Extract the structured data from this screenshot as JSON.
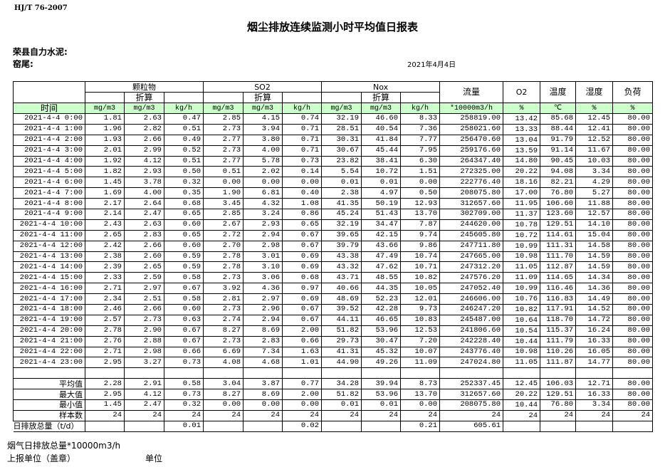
{
  "header": {
    "standard": "HJ/T  76-2007",
    "title": "烟尘排放连续监测小时平均值日报表",
    "company": "荣县自力水泥:",
    "kiln": "窑尾:",
    "date": "2021年4月4日"
  },
  "table": {
    "groups": {
      "pm": "颗粒物",
      "so2": "SO2",
      "nox": "Nox",
      "flow": "流量",
      "o2": "O2",
      "temp": "温度",
      "humidity": "湿度",
      "load": "负荷"
    },
    "converted_label": "折算",
    "units": [
      "时间",
      "mg/m3",
      "mg/m3",
      "kg/h",
      "mg/m3",
      "mg/m3",
      "kg/h",
      "mg/m3",
      "mg/m3",
      "kg/h",
      "*10000m3/h",
      "%",
      "℃",
      "%",
      "%"
    ],
    "rows": [
      [
        "2021-4-4 0:00",
        "1.81",
        "2.63",
        "0.47",
        "2.85",
        "4.15",
        "0.74",
        "32.19",
        "46.60",
        "8.33",
        "258819.00",
        "13.42",
        "85.68",
        "12.45",
        "80.00"
      ],
      [
        "2021-4-4 1:00",
        "1.96",
        "2.82",
        "0.51",
        "2.73",
        "3.94",
        "0.71",
        "28.51",
        "40.54",
        "7.36",
        "258021.60",
        "13.33",
        "88.44",
        "12.41",
        "80.00"
      ],
      [
        "2021-4-4 2:00",
        "1.93",
        "2.66",
        "0.49",
        "2.77",
        "3.80",
        "0.71",
        "30.31",
        "41.84",
        "7.77",
        "256470.60",
        "13.04",
        "91.79",
        "12.52",
        "80.00"
      ],
      [
        "2021-4-4 3:00",
        "2.01",
        "2.99",
        "0.52",
        "2.73",
        "4.00",
        "0.71",
        "30.67",
        "45.44",
        "7.95",
        "259176.60",
        "13.59",
        "91.14",
        "11.67",
        "80.00"
      ],
      [
        "2021-4-4 4:00",
        "1.92",
        "4.12",
        "0.51",
        "2.77",
        "5.78",
        "0.73",
        "23.82",
        "38.41",
        "6.30",
        "264347.40",
        "14.80",
        "90.45",
        "10.03",
        "80.00"
      ],
      [
        "2021-4-4 5:00",
        "1.82",
        "2.93",
        "0.50",
        "0.51",
        "2.02",
        "0.14",
        "5.54",
        "10.72",
        "1.51",
        "272325.00",
        "20.22",
        "94.08",
        "3.34",
        "80.00"
      ],
      [
        "2021-4-4 6:00",
        "1.45",
        "3.78",
        "0.32",
        "0.00",
        "0.00",
        "0.00",
        "0.01",
        "0.01",
        "0.00",
        "222776.40",
        "18.16",
        "82.21",
        "4.29",
        "80.00"
      ],
      [
        "2021-4-4 7:00",
        "1.69",
        "4.00",
        "0.35",
        "1.90",
        "6.81",
        "0.40",
        "2.38",
        "4.97",
        "0.50",
        "208075.80",
        "17.00",
        "76.80",
        "5.27",
        "80.00"
      ],
      [
        "2021-4-4 8:00",
        "2.17",
        "2.64",
        "0.68",
        "3.45",
        "4.32",
        "1.08",
        "41.35",
        "50.19",
        "12.93",
        "312657.60",
        "11.95",
        "106.60",
        "11.88",
        "80.00"
      ],
      [
        "2021-4-4 9:00",
        "2.14",
        "2.47",
        "0.65",
        "2.85",
        "3.24",
        "0.86",
        "45.24",
        "51.43",
        "13.70",
        "302709.00",
        "11.37",
        "123.60",
        "12.57",
        "80.00"
      ],
      [
        "2021-4-4 10:00",
        "2.43",
        "2.63",
        "0.60",
        "2.67",
        "2.93",
        "0.65",
        "32.19",
        "34.47",
        "7.87",
        "244620.00",
        "10.78",
        "129.51",
        "14.10",
        "80.00"
      ],
      [
        "2021-4-4 11:00",
        "2.65",
        "2.83",
        "0.65",
        "2.72",
        "2.94",
        "0.67",
        "39.65",
        "42.15",
        "9.74",
        "245605.80",
        "10.72",
        "114.61",
        "15.04",
        "80.00"
      ],
      [
        "2021-4-4 12:00",
        "2.42",
        "2.66",
        "0.60",
        "2.70",
        "2.98",
        "0.67",
        "39.79",
        "43.66",
        "9.86",
        "247711.80",
        "10.99",
        "111.31",
        "14.58",
        "80.00"
      ],
      [
        "2021-4-4 13:00",
        "2.38",
        "2.60",
        "0.59",
        "2.78",
        "3.01",
        "0.69",
        "43.38",
        "47.49",
        "10.74",
        "247665.00",
        "10.98",
        "111.70",
        "14.59",
        "80.00"
      ],
      [
        "2021-4-4 14:00",
        "2.39",
        "2.65",
        "0.59",
        "2.78",
        "3.10",
        "0.69",
        "43.32",
        "47.62",
        "10.71",
        "247312.20",
        "11.05",
        "112.87",
        "14.59",
        "80.00"
      ],
      [
        "2021-4-4 15:00",
        "2.33",
        "2.59",
        "0.58",
        "2.73",
        "3.06",
        "0.68",
        "43.71",
        "48.55",
        "10.82",
        "247576.20",
        "11.09",
        "114.65",
        "14.34",
        "80.00"
      ],
      [
        "2021-4-4 16:00",
        "2.71",
        "2.97",
        "0.67",
        "3.92",
        "4.36",
        "0.97",
        "40.66",
        "44.35",
        "10.05",
        "247052.40",
        "10.99",
        "116.46",
        "14.36",
        "80.00"
      ],
      [
        "2021-4-4 17:00",
        "2.34",
        "2.51",
        "0.58",
        "2.81",
        "2.97",
        "0.69",
        "48.69",
        "52.23",
        "12.01",
        "246606.00",
        "10.76",
        "116.83",
        "14.49",
        "80.00"
      ],
      [
        "2021-4-4 18:00",
        "2.46",
        "2.66",
        "0.60",
        "2.73",
        "2.96",
        "0.67",
        "39.52",
        "42.28",
        "9.73",
        "246247.20",
        "10.82",
        "117.91",
        "14.52",
        "80.00"
      ],
      [
        "2021-4-4 19:00",
        "2.57",
        "2.73",
        "0.63",
        "2.74",
        "2.94",
        "0.67",
        "44.11",
        "46.65",
        "10.83",
        "245487.00",
        "10.64",
        "118.70",
        "14.72",
        "80.00"
      ],
      [
        "2021-4-4 20:00",
        "2.78",
        "2.90",
        "0.67",
        "8.27",
        "8.69",
        "2.00",
        "51.82",
        "53.96",
        "12.53",
        "241806.60",
        "10.54",
        "115.37",
        "16.24",
        "80.00"
      ],
      [
        "2021-4-4 21:00",
        "2.76",
        "2.88",
        "0.67",
        "2.73",
        "2.83",
        "0.66",
        "29.73",
        "30.47",
        "7.20",
        "242228.40",
        "10.44",
        "111.79",
        "16.33",
        "80.00"
      ],
      [
        "2021-4-4 22:00",
        "2.71",
        "2.98",
        "0.66",
        "6.69",
        "7.34",
        "1.63",
        "41.31",
        "45.32",
        "10.07",
        "243776.40",
        "10.98",
        "110.26",
        "16.05",
        "80.00"
      ],
      [
        "2021-4-4 23:00",
        "2.95",
        "3.27",
        "0.73",
        "4.08",
        "4.68",
        "1.01",
        "44.90",
        "49.26",
        "11.09",
        "247024.80",
        "11.05",
        "111.87",
        "14.77",
        "80.00"
      ]
    ],
    "summary": [
      [
        "平均值",
        "2.28",
        "2.91",
        "0.58",
        "3.04",
        "3.87",
        "0.77",
        "34.28",
        "39.94",
        "8.73",
        "252337.45",
        "12.45",
        "106.03",
        "12.71",
        "80.00"
      ],
      [
        "最大值",
        "2.95",
        "4.12",
        "0.73",
        "8.27",
        "8.69",
        "2.00",
        "51.82",
        "53.96",
        "13.70",
        "312657.60",
        "20.22",
        "129.51",
        "16.33",
        "80.00"
      ],
      [
        "最小值",
        "1.45",
        "2.47",
        "0.32",
        "0.00",
        "0.00",
        "0.00",
        "0.01",
        "0.01",
        "0.00",
        "208075.80",
        "10.44",
        "76.80",
        "3.34",
        "80.00"
      ],
      [
        "样本数",
        "24",
        "24",
        "24",
        "24",
        "24",
        "24",
        "24",
        "24",
        "24",
        "24",
        "24",
        "24",
        "24",
        "24"
      ]
    ],
    "daily_total": [
      "日排放总量（t/d）",
      "",
      "",
      "0.01",
      "",
      "",
      "0.02",
      "",
      "",
      "0.21",
      "605.61",
      "",
      "",
      "",
      ""
    ]
  },
  "footer": {
    "flue_gas_total": "烟气日排放总量*10000m3/h",
    "reporting_unit": "上报单位（盖章）",
    "unit": "单位"
  },
  "colors": {
    "units_row_bg": "#ccffcc"
  }
}
